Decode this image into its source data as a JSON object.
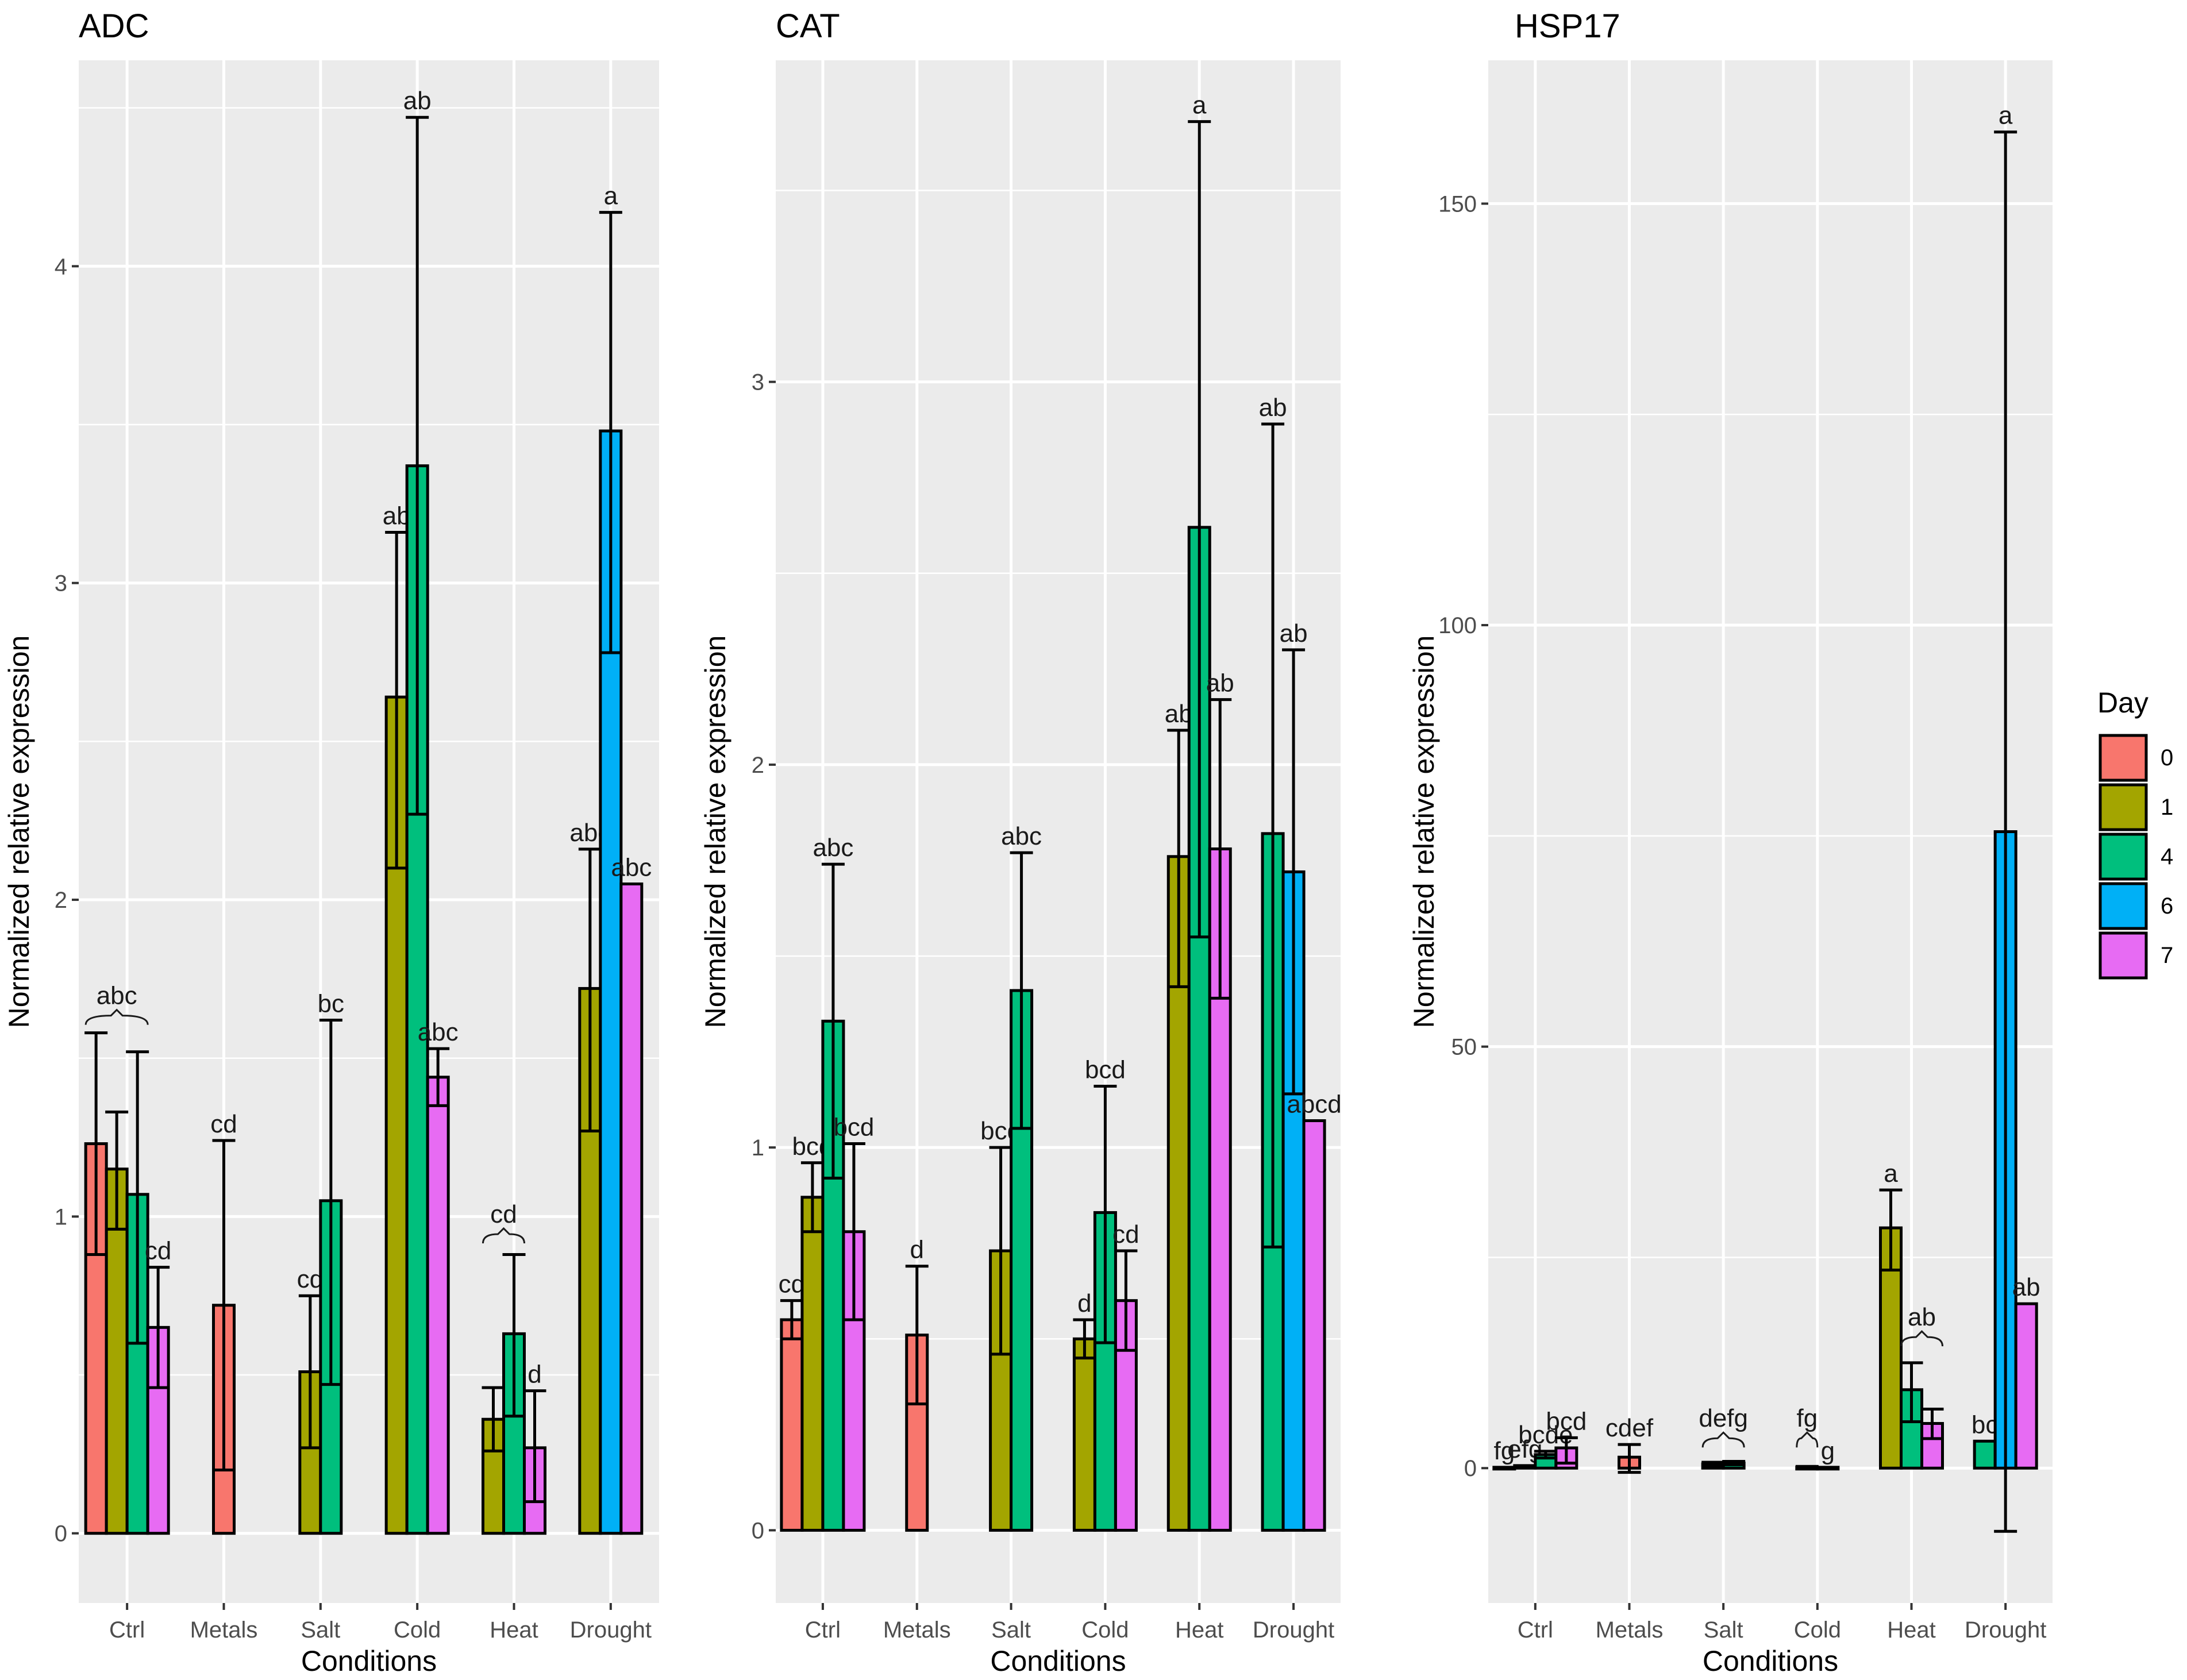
{
  "chart_data": [
    {
      "type": "bar",
      "title": "ADC",
      "xlabel": "Conditions",
      "ylabel": "Normalized relative expression",
      "ylim": [
        -0.22,
        4.65
      ],
      "yticks": [
        0,
        1,
        2,
        3,
        4
      ],
      "categories": [
        "Ctrl",
        "Metals",
        "Salt",
        "Cold",
        "Heat",
        "Drought"
      ],
      "grid": true,
      "bars": [
        {
          "cat": 0,
          "day": "0",
          "value": 1.23,
          "err_lo": 0.88,
          "err_hi": 1.58,
          "label": ""
        },
        {
          "cat": 0,
          "day": "1",
          "value": 1.15,
          "err_lo": 0.96,
          "err_hi": 1.33,
          "label": ""
        },
        {
          "cat": 0,
          "day": "4",
          "value": 1.07,
          "err_lo": 0.6,
          "err_hi": 1.52,
          "label": ""
        },
        {
          "cat": 0,
          "day": "7",
          "value": 0.65,
          "err_lo": 0.46,
          "err_hi": 0.84,
          "label": "cd"
        },
        {
          "cat": 1,
          "day": "0",
          "value": 0.72,
          "err_lo": 0.2,
          "err_hi": 1.24,
          "label": "cd"
        },
        {
          "cat": 2,
          "day": "1",
          "value": 0.51,
          "err_lo": 0.27,
          "err_hi": 0.75,
          "label": "cd"
        },
        {
          "cat": 2,
          "day": "4",
          "value": 1.05,
          "err_lo": 0.47,
          "err_hi": 1.62,
          "label": "bc"
        },
        {
          "cat": 3,
          "day": "1",
          "value": 2.64,
          "err_lo": 2.1,
          "err_hi": 3.16,
          "label": "ab"
        },
        {
          "cat": 3,
          "day": "4",
          "value": 3.37,
          "err_lo": 2.27,
          "err_hi": 4.47,
          "label": "ab"
        },
        {
          "cat": 3,
          "day": "7",
          "value": 1.44,
          "err_lo": 1.35,
          "err_hi": 1.53,
          "label": "abc"
        },
        {
          "cat": 4,
          "day": "1",
          "value": 0.36,
          "err_lo": 0.26,
          "err_hi": 0.46,
          "label": ""
        },
        {
          "cat": 4,
          "day": "4",
          "value": 0.63,
          "err_lo": 0.37,
          "err_hi": 0.88,
          "label": ""
        },
        {
          "cat": 4,
          "day": "7",
          "value": 0.27,
          "err_lo": 0.1,
          "err_hi": 0.45,
          "label": "d"
        },
        {
          "cat": 5,
          "day": "1",
          "value": 1.72,
          "err_lo": 1.27,
          "err_hi": 2.16,
          "label": "abc"
        },
        {
          "cat": 5,
          "day": "6",
          "value": 3.48,
          "err_lo": 2.78,
          "err_hi": 4.17,
          "label": "a"
        },
        {
          "cat": 5,
          "day": "7",
          "value": 2.05,
          "err_lo": null,
          "err_hi": null,
          "label": "abc"
        }
      ],
      "group_labels": [
        {
          "cat": 0,
          "label": "abc",
          "from_day": "0",
          "to_day": "4",
          "y": 1.58
        },
        {
          "cat": 4,
          "label": "cd",
          "from_day": "1",
          "to_day": "4",
          "y": 0.89
        }
      ]
    },
    {
      "type": "bar",
      "title": "CAT",
      "xlabel": "Conditions",
      "ylabel": "Normalized relative expression",
      "ylim": [
        -0.19,
        3.84
      ],
      "yticks": [
        0,
        1,
        2,
        3
      ],
      "categories": [
        "Ctrl",
        "Metals",
        "Salt",
        "Cold",
        "Heat",
        "Drought"
      ],
      "grid": true,
      "bars": [
        {
          "cat": 0,
          "day": "0",
          "value": 0.55,
          "err_lo": 0.5,
          "err_hi": 0.6,
          "label": "cd"
        },
        {
          "cat": 0,
          "day": "1",
          "value": 0.87,
          "err_lo": 0.78,
          "err_hi": 0.96,
          "label": "bcd"
        },
        {
          "cat": 0,
          "day": "4",
          "value": 1.33,
          "err_lo": 0.92,
          "err_hi": 1.74,
          "label": "abc"
        },
        {
          "cat": 0,
          "day": "7",
          "value": 0.78,
          "err_lo": 0.55,
          "err_hi": 1.01,
          "label": "bcd"
        },
        {
          "cat": 1,
          "day": "0",
          "value": 0.51,
          "err_lo": 0.33,
          "err_hi": 0.69,
          "label": "d"
        },
        {
          "cat": 2,
          "day": "1",
          "value": 0.73,
          "err_lo": 0.46,
          "err_hi": 1.0,
          "label": "bcd"
        },
        {
          "cat": 2,
          "day": "4",
          "value": 1.41,
          "err_lo": 1.05,
          "err_hi": 1.77,
          "label": "abc"
        },
        {
          "cat": 3,
          "day": "1",
          "value": 0.5,
          "err_lo": 0.45,
          "err_hi": 0.55,
          "label": "d"
        },
        {
          "cat": 3,
          "day": "4",
          "value": 0.83,
          "err_lo": 0.49,
          "err_hi": 1.16,
          "label": "bcd"
        },
        {
          "cat": 3,
          "day": "7",
          "value": 0.6,
          "err_lo": 0.47,
          "err_hi": 0.73,
          "label": "cd"
        },
        {
          "cat": 4,
          "day": "1",
          "value": 1.76,
          "err_lo": 1.42,
          "err_hi": 2.09,
          "label": "ab"
        },
        {
          "cat": 4,
          "day": "4",
          "value": 2.62,
          "err_lo": 1.55,
          "err_hi": 3.68,
          "label": "a"
        },
        {
          "cat": 4,
          "day": "7",
          "value": 1.78,
          "err_lo": 1.39,
          "err_hi": 2.17,
          "label": "ab"
        },
        {
          "cat": 5,
          "day": "4",
          "value": 1.82,
          "err_lo": 0.74,
          "err_hi": 2.89,
          "label": "ab"
        },
        {
          "cat": 5,
          "day": "6",
          "value": 1.72,
          "err_lo": 1.14,
          "err_hi": 2.3,
          "label": "ab"
        },
        {
          "cat": 5,
          "day": "7",
          "value": 1.07,
          "err_lo": null,
          "err_hi": null,
          "label": "abcd"
        }
      ],
      "group_labels": []
    },
    {
      "type": "bar",
      "title": "HSP17",
      "xlabel": "Conditions",
      "ylabel": "Normalized relative expression",
      "ylim": [
        -16,
        167
      ],
      "yticks": [
        0,
        50,
        100,
        150
      ],
      "categories": [
        "Ctrl",
        "Metals",
        "Salt",
        "Cold",
        "Heat",
        "Drought"
      ],
      "grid": true,
      "bars": [
        {
          "cat": 0,
          "day": "0",
          "value": 0.1,
          "err_lo": null,
          "err_hi": null,
          "label": "fg"
        },
        {
          "cat": 0,
          "day": "1",
          "value": 0.3,
          "err_lo": null,
          "err_hi": null,
          "label": "efg"
        },
        {
          "cat": 0,
          "day": "4",
          "value": 1.6,
          "err_lo": 1.2,
          "err_hi": 2.0,
          "label": "bcde"
        },
        {
          "cat": 0,
          "day": "7",
          "value": 2.4,
          "err_lo": 0.6,
          "err_hi": 3.6,
          "label": "bcd"
        },
        {
          "cat": 1,
          "day": "0",
          "value": 1.3,
          "err_lo": -0.5,
          "err_hi": 2.8,
          "label": "cdef"
        },
        {
          "cat": 2,
          "day": "1",
          "value": 0.5,
          "err_lo": 0.3,
          "err_hi": 0.7,
          "label": ""
        },
        {
          "cat": 2,
          "day": "4",
          "value": 0.6,
          "err_lo": 0.4,
          "err_hi": 0.8,
          "label": ""
        },
        {
          "cat": 3,
          "day": "1",
          "value": 0.1,
          "err_lo": 0.0,
          "err_hi": 0.2,
          "label": ""
        },
        {
          "cat": 3,
          "day": "4",
          "value": 0.1,
          "err_lo": null,
          "err_hi": null,
          "label": "g"
        },
        {
          "cat": 4,
          "day": "1",
          "value": 28.5,
          "err_lo": 23.5,
          "err_hi": 33.0,
          "label": "a"
        },
        {
          "cat": 4,
          "day": "4",
          "value": 9.3,
          "err_lo": 5.5,
          "err_hi": 12.5,
          "label": ""
        },
        {
          "cat": 4,
          "day": "7",
          "value": 5.3,
          "err_lo": 3.5,
          "err_hi": 7.0,
          "label": ""
        },
        {
          "cat": 5,
          "day": "4",
          "value": 3.2,
          "err_lo": null,
          "err_hi": null,
          "label": "bc"
        },
        {
          "cat": 5,
          "day": "6",
          "value": 75.5,
          "err_lo": -7.5,
          "err_hi": 158.5,
          "label": "a"
        },
        {
          "cat": 5,
          "day": "7",
          "value": 19.5,
          "err_lo": null,
          "err_hi": null,
          "label": "ab"
        }
      ],
      "group_labels": [
        {
          "cat": 2,
          "label": "defg",
          "from_day": "1",
          "to_day": "4",
          "y": 1.5
        },
        {
          "cat": 3,
          "label": "fg",
          "from_day": "1",
          "to_day": "1",
          "y": 1.5
        },
        {
          "cat": 4,
          "label": "ab",
          "from_day": "4",
          "to_day": "7",
          "y": 13.5
        }
      ]
    }
  ],
  "legend": {
    "title": "Day",
    "placement": "right",
    "items": [
      {
        "label": "0",
        "color": "#F8766D"
      },
      {
        "label": "1",
        "color": "#A3A500"
      },
      {
        "label": "4",
        "color": "#00BF7D"
      },
      {
        "label": "6",
        "color": "#00B0F6"
      },
      {
        "label": "7",
        "color": "#E76BF3"
      }
    ]
  },
  "colors": {
    "panel_background": "#EBEBEB",
    "grid": "#FFFFFF",
    "bar_outline": "#000000"
  }
}
